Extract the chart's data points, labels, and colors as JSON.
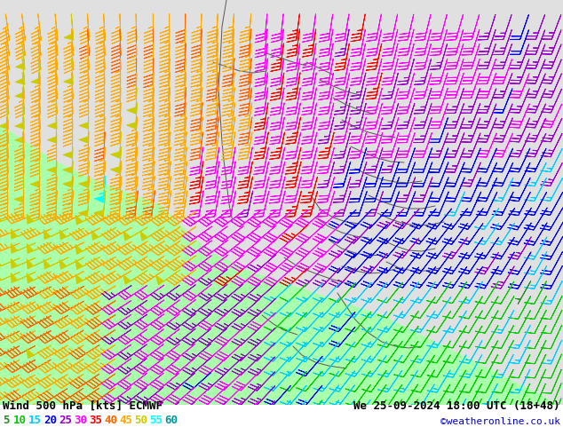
{
  "title_left": "Wind 500 hPa [kts] ECMWF",
  "title_right": "We 25-09-2024 18:00 UTC (18+48)",
  "credit": "©weatheronline.co.uk",
  "legend_values": [
    5,
    10,
    15,
    20,
    25,
    30,
    35,
    40,
    45,
    50,
    55,
    60
  ],
  "legend_colors": [
    "#228B22",
    "#00CC00",
    "#00CCFF",
    "#0000FF",
    "#9900CC",
    "#FF00FF",
    "#FF0000",
    "#FF6600",
    "#FFAA00",
    "#CCCC00",
    "#00FFFF",
    "#009999"
  ],
  "bg_color": "#aaffaa",
  "land_color_north": "#e0e0e0",
  "land_color_central": "#d8d8d8",
  "text_color": "#000000",
  "fig_width": 6.34,
  "fig_height": 4.9,
  "dpi": 100,
  "barb_speed_colors": [
    [
      5,
      "#228B22"
    ],
    [
      10,
      "#00CC00"
    ],
    [
      15,
      "#00CCFF"
    ],
    [
      20,
      "#0000FF"
    ],
    [
      25,
      "#9900CC"
    ],
    [
      30,
      "#FF00FF"
    ],
    [
      35,
      "#FF0000"
    ],
    [
      40,
      "#FF6600"
    ],
    [
      45,
      "#FFAA00"
    ],
    [
      50,
      "#CCCC00"
    ],
    [
      55,
      "#00FFFF"
    ],
    [
      60,
      "#009999"
    ]
  ],
  "font_size_title": 9,
  "font_size_legend": 9,
  "font_size_credit": 8,
  "border_color": "#555555",
  "credit_color": "#0000CC"
}
